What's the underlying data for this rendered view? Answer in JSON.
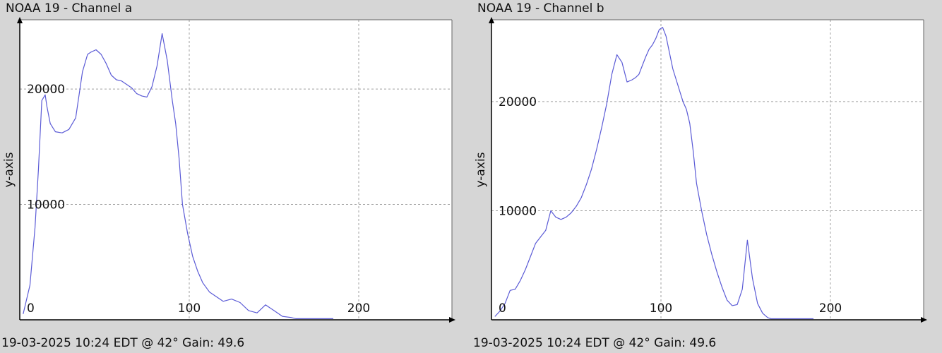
{
  "charts": [
    {
      "title": "NOAA 19 - Channel a",
      "footer": "19-03-2025 10:24 EDT @ 42° Gain: 49.6"
    },
    {
      "title": "NOAA 19 - Channel b",
      "footer": "19-03-2025 10:24 EDT @ 42° Gain: 49.6"
    }
  ],
  "chart_data": [
    {
      "type": "line",
      "title": "NOAA 19 - Channel a",
      "ylabel": "y-axis",
      "xlim": [
        0,
        255
      ],
      "ylim": [
        0,
        26000
      ],
      "xticks": [
        0,
        100,
        200
      ],
      "yticks": [
        10000,
        20000
      ],
      "grid": true,
      "line_color": "#5b5bd6",
      "series": [
        {
          "x": [
            2,
            6,
            9,
            11,
            13,
            15,
            16,
            18,
            21,
            25,
            29,
            33,
            37,
            40,
            42,
            45,
            48,
            51,
            54,
            57,
            60,
            63,
            66,
            69,
            72,
            75,
            78,
            81,
            84,
            87,
            90,
            92,
            94,
            96,
            99,
            102,
            105,
            108,
            112,
            116,
            120,
            125,
            130,
            135,
            140,
            145,
            150,
            155,
            160,
            163,
            166,
            169,
            172,
            176,
            180,
            185
          ],
          "y": [
            500,
            3000,
            8000,
            13000,
            19000,
            19500,
            18500,
            17000,
            16300,
            16200,
            16500,
            17500,
            21500,
            23000,
            23200,
            23400,
            23000,
            22200,
            21200,
            20800,
            20700,
            20400,
            20100,
            19600,
            19400,
            19300,
            20200,
            22000,
            24800,
            22500,
            19000,
            17000,
            14000,
            10000,
            7500,
            5500,
            4200,
            3200,
            2400,
            2000,
            1600,
            1800,
            1500,
            800,
            600,
            1300,
            800,
            300,
            200,
            100,
            100,
            100,
            100,
            100,
            100,
            100
          ]
        }
      ]
    },
    {
      "type": "line",
      "title": "NOAA 19 - Channel b",
      "ylabel": "y-axis",
      "xlim": [
        0,
        255
      ],
      "ylim": [
        0,
        27500
      ],
      "xticks": [
        0,
        100,
        200
      ],
      "yticks": [
        10000,
        20000
      ],
      "grid": true,
      "line_color": "#5b5bd6",
      "series": [
        {
          "x": [
            2,
            5,
            8,
            11,
            14,
            17,
            20,
            23,
            26,
            29,
            32,
            35,
            38,
            41,
            44,
            47,
            50,
            53,
            56,
            59,
            62,
            65,
            68,
            71,
            74,
            77,
            80,
            83,
            85,
            87,
            89,
            91,
            93,
            95,
            97,
            99,
            101,
            103,
            105,
            107,
            109,
            111,
            113,
            115,
            117,
            119,
            121,
            124,
            127,
            130,
            133,
            136,
            139,
            142,
            145,
            148,
            151,
            154,
            157,
            160,
            163,
            165,
            167,
            169,
            171,
            173,
            176,
            179,
            182,
            186,
            190
          ],
          "y": [
            300,
            800,
            1500,
            2700,
            2800,
            3600,
            4600,
            5800,
            7000,
            7600,
            8200,
            10000,
            9400,
            9200,
            9400,
            9800,
            10400,
            11200,
            12400,
            13800,
            15600,
            17600,
            19800,
            22500,
            24300,
            23600,
            21800,
            22000,
            22200,
            22500,
            23300,
            24100,
            24800,
            25200,
            25800,
            26600,
            26800,
            26000,
            24500,
            23000,
            22000,
            21000,
            20000,
            19300,
            18000,
            15500,
            12500,
            10000,
            7800,
            6000,
            4400,
            3000,
            1800,
            1300,
            1400,
            2800,
            7300,
            3800,
            1500,
            600,
            200,
            100,
            100,
            100,
            100,
            100,
            100,
            100,
            100,
            100,
            100
          ]
        }
      ]
    }
  ]
}
